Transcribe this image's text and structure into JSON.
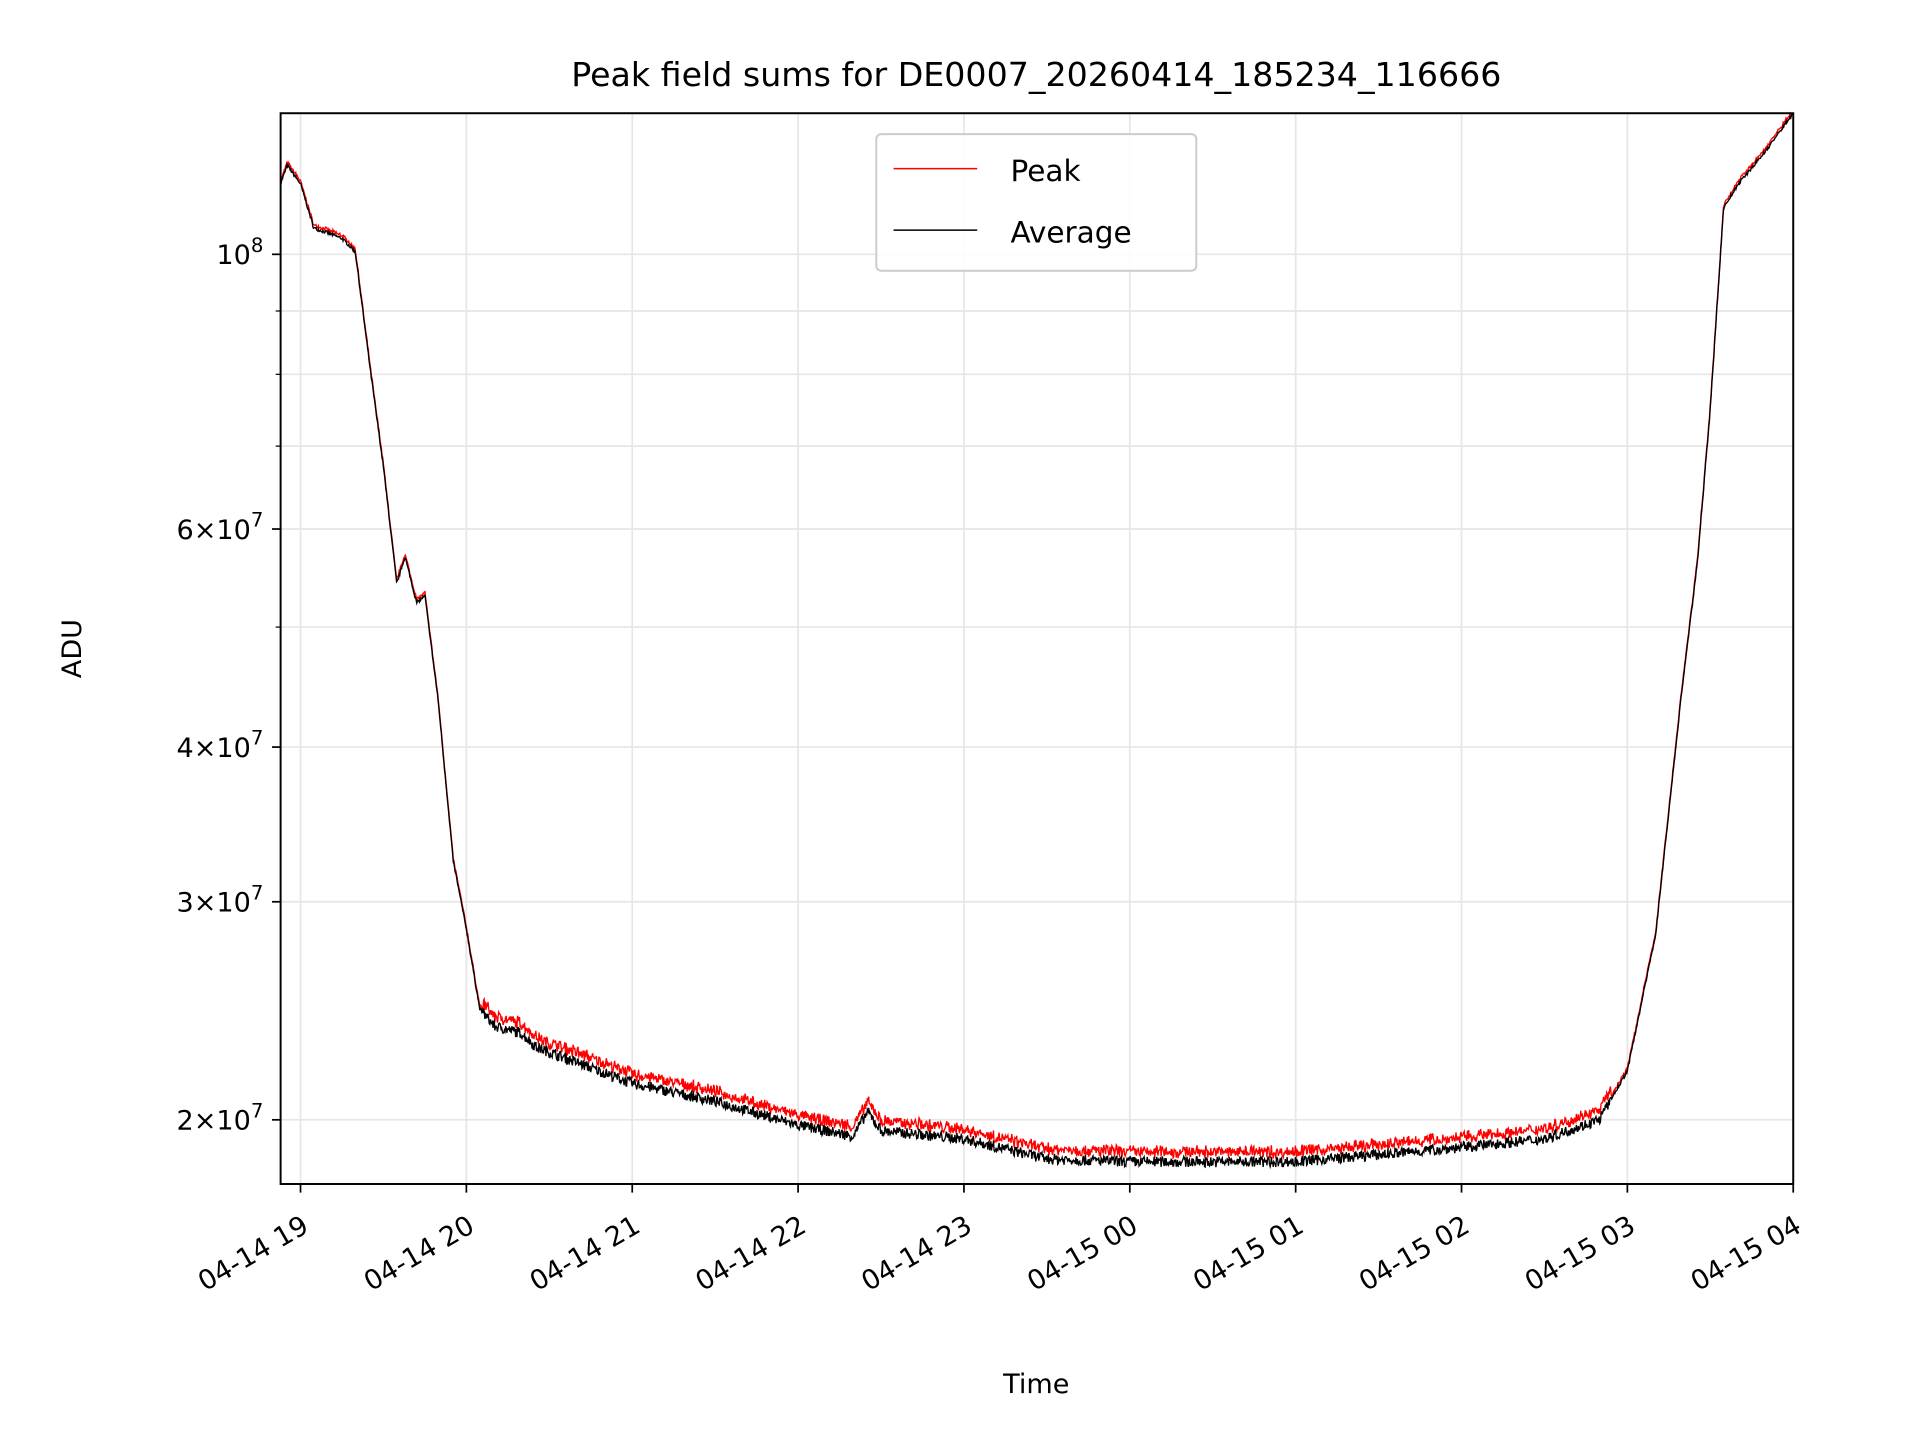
{
  "chart_data": {
    "type": "line",
    "title": "Peak field sums for DE0007_20260414_185234_116666",
    "xlabel": "Time",
    "ylabel": "ADU",
    "yscale": "log",
    "x_units": "hours since 04-14 00:00",
    "xlim": [
      18.88,
      28.0
    ],
    "ylim": [
      17750000,
      130000000
    ],
    "grid": true,
    "legend_position": "top-center",
    "x_ticks": [
      {
        "t": 19,
        "label": "04-14 19"
      },
      {
        "t": 20,
        "label": "04-14 20"
      },
      {
        "t": 21,
        "label": "04-14 21"
      },
      {
        "t": 22,
        "label": "04-14 22"
      },
      {
        "t": 23,
        "label": "04-14 23"
      },
      {
        "t": 24,
        "label": "04-15 00"
      },
      {
        "t": 25,
        "label": "04-15 01"
      },
      {
        "t": 26,
        "label": "04-15 02"
      },
      {
        "t": 27,
        "label": "04-15 03"
      },
      {
        "t": 28,
        "label": "04-15 04"
      }
    ],
    "y_ticks": [
      {
        "v": 100000000,
        "mant": "",
        "base": "10",
        "exp": "8"
      },
      {
        "v": 60000000,
        "mant": "6",
        "base": "10",
        "exp": "7"
      },
      {
        "v": 40000000,
        "mant": "4",
        "base": "10",
        "exp": "7"
      },
      {
        "v": 30000000,
        "mant": "3",
        "base": "10",
        "exp": "7"
      },
      {
        "v": 20000000,
        "mant": "2",
        "base": "10",
        "exp": "7"
      }
    ],
    "y_minor": [
      50000000,
      70000000,
      80000000,
      90000000
    ],
    "series": [
      {
        "name": "Peak",
        "color": "#ff0000",
        "offset_ratio": 1.015
      },
      {
        "name": "Average",
        "color": "#000000",
        "offset_ratio": 1.0
      }
    ],
    "average_points": [
      [
        18.88,
        114000000
      ],
      [
        18.92,
        118000000
      ],
      [
        19.0,
        114000000
      ],
      [
        19.08,
        105000000
      ],
      [
        19.17,
        104000000
      ],
      [
        19.25,
        103000000
      ],
      [
        19.33,
        100500000
      ],
      [
        19.42,
        80800000
      ],
      [
        19.5,
        67300000
      ],
      [
        19.58,
        54200000
      ],
      [
        19.63,
        57000000
      ],
      [
        19.7,
        52300000
      ],
      [
        19.75,
        53000000
      ],
      [
        19.83,
        43600000
      ],
      [
        19.92,
        32400000
      ],
      [
        20.0,
        28500000
      ],
      [
        20.08,
        24600000
      ],
      [
        20.17,
        23800000
      ],
      [
        20.33,
        23500000
      ],
      [
        20.42,
        22900000
      ],
      [
        21.0,
        21400000
      ],
      [
        21.5,
        20700000
      ],
      [
        22.0,
        19800000
      ],
      [
        22.33,
        19400000
      ],
      [
        22.42,
        20300000
      ],
      [
        22.5,
        19600000
      ],
      [
        23.0,
        19300000
      ],
      [
        23.5,
        18600000
      ],
      [
        24.0,
        18500000
      ],
      [
        25.0,
        18500000
      ],
      [
        26.0,
        19000000
      ],
      [
        26.5,
        19300000
      ],
      [
        26.83,
        20000000
      ],
      [
        27.0,
        21900000
      ],
      [
        27.17,
        28200000
      ],
      [
        27.33,
        44600000
      ],
      [
        27.42,
        56000000
      ],
      [
        27.5,
        75000000
      ],
      [
        27.58,
        109000000
      ],
      [
        27.67,
        114000000
      ],
      [
        27.83,
        121000000
      ],
      [
        28.0,
        130000000
      ]
    ]
  }
}
